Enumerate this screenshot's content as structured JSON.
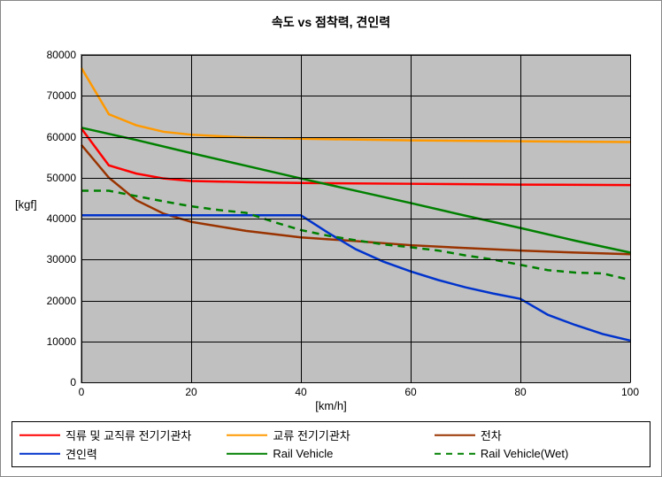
{
  "title": "속도 vs 점착력, 견인력",
  "x_axis": {
    "label": "[km/h]",
    "min": 0,
    "max": 100,
    "ticks": [
      0,
      20,
      40,
      60,
      80,
      100
    ]
  },
  "y_axis": {
    "label": "[kgf]",
    "min": 0,
    "max": 80000,
    "ticks": [
      0,
      10000,
      20000,
      30000,
      40000,
      50000,
      60000,
      70000,
      80000
    ]
  },
  "background_color": "#c0c0c0",
  "grid_color": "#000000",
  "series": [
    {
      "name": "직류 및 교직류 전기기관차",
      "color": "#ff0000",
      "dash": "solid",
      "width": 2.5,
      "points": [
        [
          0,
          62000
        ],
        [
          5,
          53000
        ],
        [
          10,
          51000
        ],
        [
          15,
          49800
        ],
        [
          20,
          49200
        ],
        [
          30,
          48900
        ],
        [
          40,
          48700
        ],
        [
          60,
          48500
        ],
        [
          80,
          48300
        ],
        [
          100,
          48200
        ]
      ]
    },
    {
      "name": "교류 전기기관차",
      "color": "#ff9900",
      "dash": "solid",
      "width": 2.5,
      "points": [
        [
          0,
          76800
        ],
        [
          5,
          65500
        ],
        [
          10,
          62800
        ],
        [
          15,
          61200
        ],
        [
          20,
          60500
        ],
        [
          30,
          59800
        ],
        [
          40,
          59500
        ],
        [
          60,
          59100
        ],
        [
          80,
          58900
        ],
        [
          100,
          58700
        ]
      ]
    },
    {
      "name": "전차",
      "color": "#993300",
      "dash": "solid",
      "width": 2.5,
      "points": [
        [
          0,
          58000
        ],
        [
          5,
          50000
        ],
        [
          10,
          44500
        ],
        [
          15,
          41200
        ],
        [
          20,
          39200
        ],
        [
          30,
          37000
        ],
        [
          40,
          35400
        ],
        [
          50,
          34500
        ],
        [
          60,
          33500
        ],
        [
          70,
          32800
        ],
        [
          80,
          32200
        ],
        [
          90,
          31700
        ],
        [
          100,
          31300
        ]
      ]
    },
    {
      "name": "견인력",
      "color": "#0033cc",
      "dash": "solid",
      "width": 2.5,
      "points": [
        [
          0,
          40800
        ],
        [
          10,
          40800
        ],
        [
          20,
          40800
        ],
        [
          30,
          40800
        ],
        [
          40,
          40800
        ],
        [
          45,
          36500
        ],
        [
          50,
          32500
        ],
        [
          55,
          29500
        ],
        [
          60,
          27100
        ],
        [
          65,
          25000
        ],
        [
          70,
          23200
        ],
        [
          75,
          21700
        ],
        [
          80,
          20400
        ],
        [
          85,
          16500
        ],
        [
          90,
          14000
        ],
        [
          95,
          11800
        ],
        [
          100,
          10200
        ]
      ]
    },
    {
      "name": "Rail Vehicle",
      "color": "#008000",
      "dash": "solid",
      "width": 2.5,
      "points": [
        [
          0,
          62200
        ],
        [
          10,
          59200
        ],
        [
          20,
          56000
        ],
        [
          30,
          52900
        ],
        [
          40,
          49800
        ],
        [
          50,
          46800
        ],
        [
          60,
          43800
        ],
        [
          70,
          40700
        ],
        [
          80,
          37700
        ],
        [
          90,
          34600
        ],
        [
          100,
          31700
        ]
      ]
    },
    {
      "name": "Rail Vehicle(Wet)",
      "color": "#008000",
      "dash": "dashed",
      "width": 2.5,
      "points": [
        [
          0,
          46800
        ],
        [
          5,
          46800
        ],
        [
          10,
          45500
        ],
        [
          15,
          44200
        ],
        [
          20,
          43000
        ],
        [
          25,
          42100
        ],
        [
          30,
          41400
        ],
        [
          35,
          39200
        ],
        [
          40,
          37200
        ],
        [
          45,
          35800
        ],
        [
          50,
          34700
        ],
        [
          55,
          33700
        ],
        [
          60,
          33000
        ],
        [
          65,
          32200
        ],
        [
          70,
          31000
        ],
        [
          75,
          30000
        ],
        [
          80,
          28700
        ],
        [
          85,
          27400
        ],
        [
          90,
          26800
        ],
        [
          95,
          26600
        ],
        [
          100,
          25000
        ]
      ]
    }
  ],
  "legend": {
    "items": [
      {
        "label": "직류 및 교직류 전기기관차",
        "series": 0
      },
      {
        "label": "교류 전기기관차",
        "series": 1
      },
      {
        "label": "전차",
        "series": 2
      },
      {
        "label": "견인력",
        "series": 3
      },
      {
        "label": "Rail Vehicle",
        "series": 4
      },
      {
        "label": "Rail Vehicle(Wet)",
        "series": 5
      }
    ]
  }
}
